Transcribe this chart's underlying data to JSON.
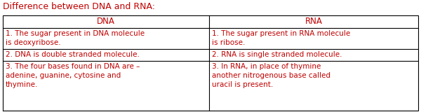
{
  "title": "Difference between DNA and RNA:",
  "title_color": "#c00000",
  "text_color": "#c00000",
  "header_text_color": "#c00000",
  "background_color": "#ffffff",
  "border_color": "#000000",
  "col_headers": [
    "DNA",
    "RNA"
  ],
  "rows": [
    [
      "1. The sugar present in DNA molecule\nis deoxyribose.",
      "1. The sugar present in RNA molecule\nis ribose."
    ],
    [
      "2. DNA is double stranded molecule.",
      "2. RNA is single stranded molecule."
    ],
    [
      "3. The four bases found in DNA are –\nadenine, guanine, cytosine and\nthymine.",
      "3. In RNA, in place of thymine\nanother nitrogenous base called\nuracil is present."
    ]
  ],
  "font_family": "DejaVu Sans",
  "cell_fontsize": 7.5,
  "header_fontsize": 8.5,
  "title_fontsize": 9.0
}
